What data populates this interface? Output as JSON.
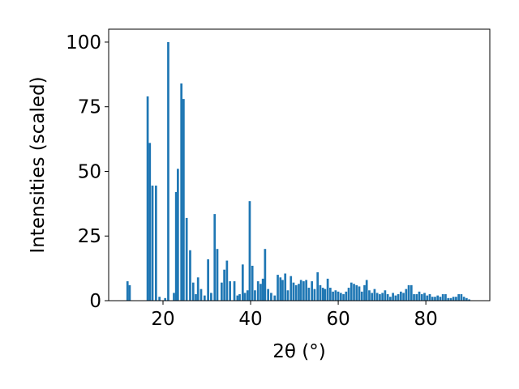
{
  "chart_data": {
    "type": "bar",
    "xlabel": "2θ (°)",
    "ylabel": "Intensities (scaled)",
    "xlim": [
      7.6,
      94.6
    ],
    "ylim": [
      0,
      105
    ],
    "x_ticks": [
      20,
      40,
      60,
      80
    ],
    "y_ticks": [
      0,
      25,
      50,
      75,
      100
    ],
    "x_tick_labels": [
      "20",
      "40",
      "60",
      "80"
    ],
    "y_tick_labels": [
      "0",
      "25",
      "50",
      "75",
      "100"
    ],
    "bar_color": "#1f77b4",
    "grid": false,
    "bar_width": 0.5,
    "x": [
      11.9,
      12.4,
      16.5,
      17.0,
      17.6,
      18.4,
      19.2,
      20.5,
      21.2,
      22.5,
      23.0,
      23.4,
      24.2,
      24.7,
      25.4,
      26.2,
      26.9,
      27.5,
      28.0,
      28.7,
      29.5,
      30.3,
      31.0,
      31.8,
      32.4,
      33.4,
      34.0,
      34.6,
      35.3,
      36.3,
      37.0,
      37.5,
      38.2,
      38.7,
      39.3,
      39.8,
      40.4,
      41.0,
      41.7,
      42.3,
      42.8,
      43.3,
      44.0,
      44.7,
      45.5,
      46.2,
      46.8,
      47.3,
      47.9,
      48.5,
      49.2,
      49.8,
      50.4,
      51.0,
      51.5,
      52.1,
      52.7,
      53.3,
      54.0,
      54.6,
      55.3,
      55.9,
      56.5,
      57.0,
      57.6,
      58.2,
      58.8,
      59.4,
      60.0,
      60.6,
      61.2,
      61.8,
      62.4,
      63.0,
      63.6,
      64.2,
      64.8,
      65.4,
      66.0,
      66.5,
      67.1,
      67.7,
      68.3,
      68.9,
      69.5,
      70.1,
      70.7,
      71.3,
      71.9,
      72.5,
      73.1,
      73.7,
      74.3,
      74.9,
      75.5,
      76.1,
      76.7,
      77.3,
      77.9,
      78.5,
      79.1,
      79.7,
      80.3,
      80.9,
      81.5,
      82.1,
      82.7,
      83.3,
      83.9,
      84.5,
      85.1,
      85.7,
      86.3,
      86.9,
      87.5,
      88.1,
      88.7,
      89.3,
      89.9
    ],
    "values": [
      7.5,
      6,
      79,
      61,
      44.5,
      44.5,
      1.5,
      1,
      100,
      3,
      42,
      51,
      84,
      78,
      32,
      19.5,
      7,
      2.5,
      9,
      4.5,
      2,
      16,
      3,
      33.5,
      20,
      7,
      12,
      15.5,
      7.5,
      7.5,
      2,
      2.5,
      14,
      3,
      4,
      38.5,
      13.5,
      4,
      7.5,
      6.5,
      8.5,
      20,
      4.5,
      3,
      2,
      10,
      9,
      8,
      10.5,
      4,
      9.5,
      7,
      6,
      6.5,
      8,
      7.5,
      8,
      5,
      7.5,
      4.5,
      11,
      6,
      5,
      4.5,
      8.5,
      5,
      3.5,
      4,
      3.5,
      3,
      2.5,
      3.5,
      5,
      7,
      6.5,
      6,
      5.5,
      3.5,
      6,
      8,
      4,
      3,
      4.5,
      3,
      2.5,
      3,
      4,
      2.5,
      1.5,
      3,
      2,
      2.5,
      3.5,
      3,
      4.5,
      6,
      6,
      2.5,
      2.5,
      3.5,
      2.5,
      3,
      2,
      2.5,
      1.5,
      1.5,
      2,
      1.5,
      2.5,
      2.5,
      1,
      1,
      1.5,
      1.5,
      2.5,
      2.5,
      1.5,
      1,
      0.5
    ]
  }
}
